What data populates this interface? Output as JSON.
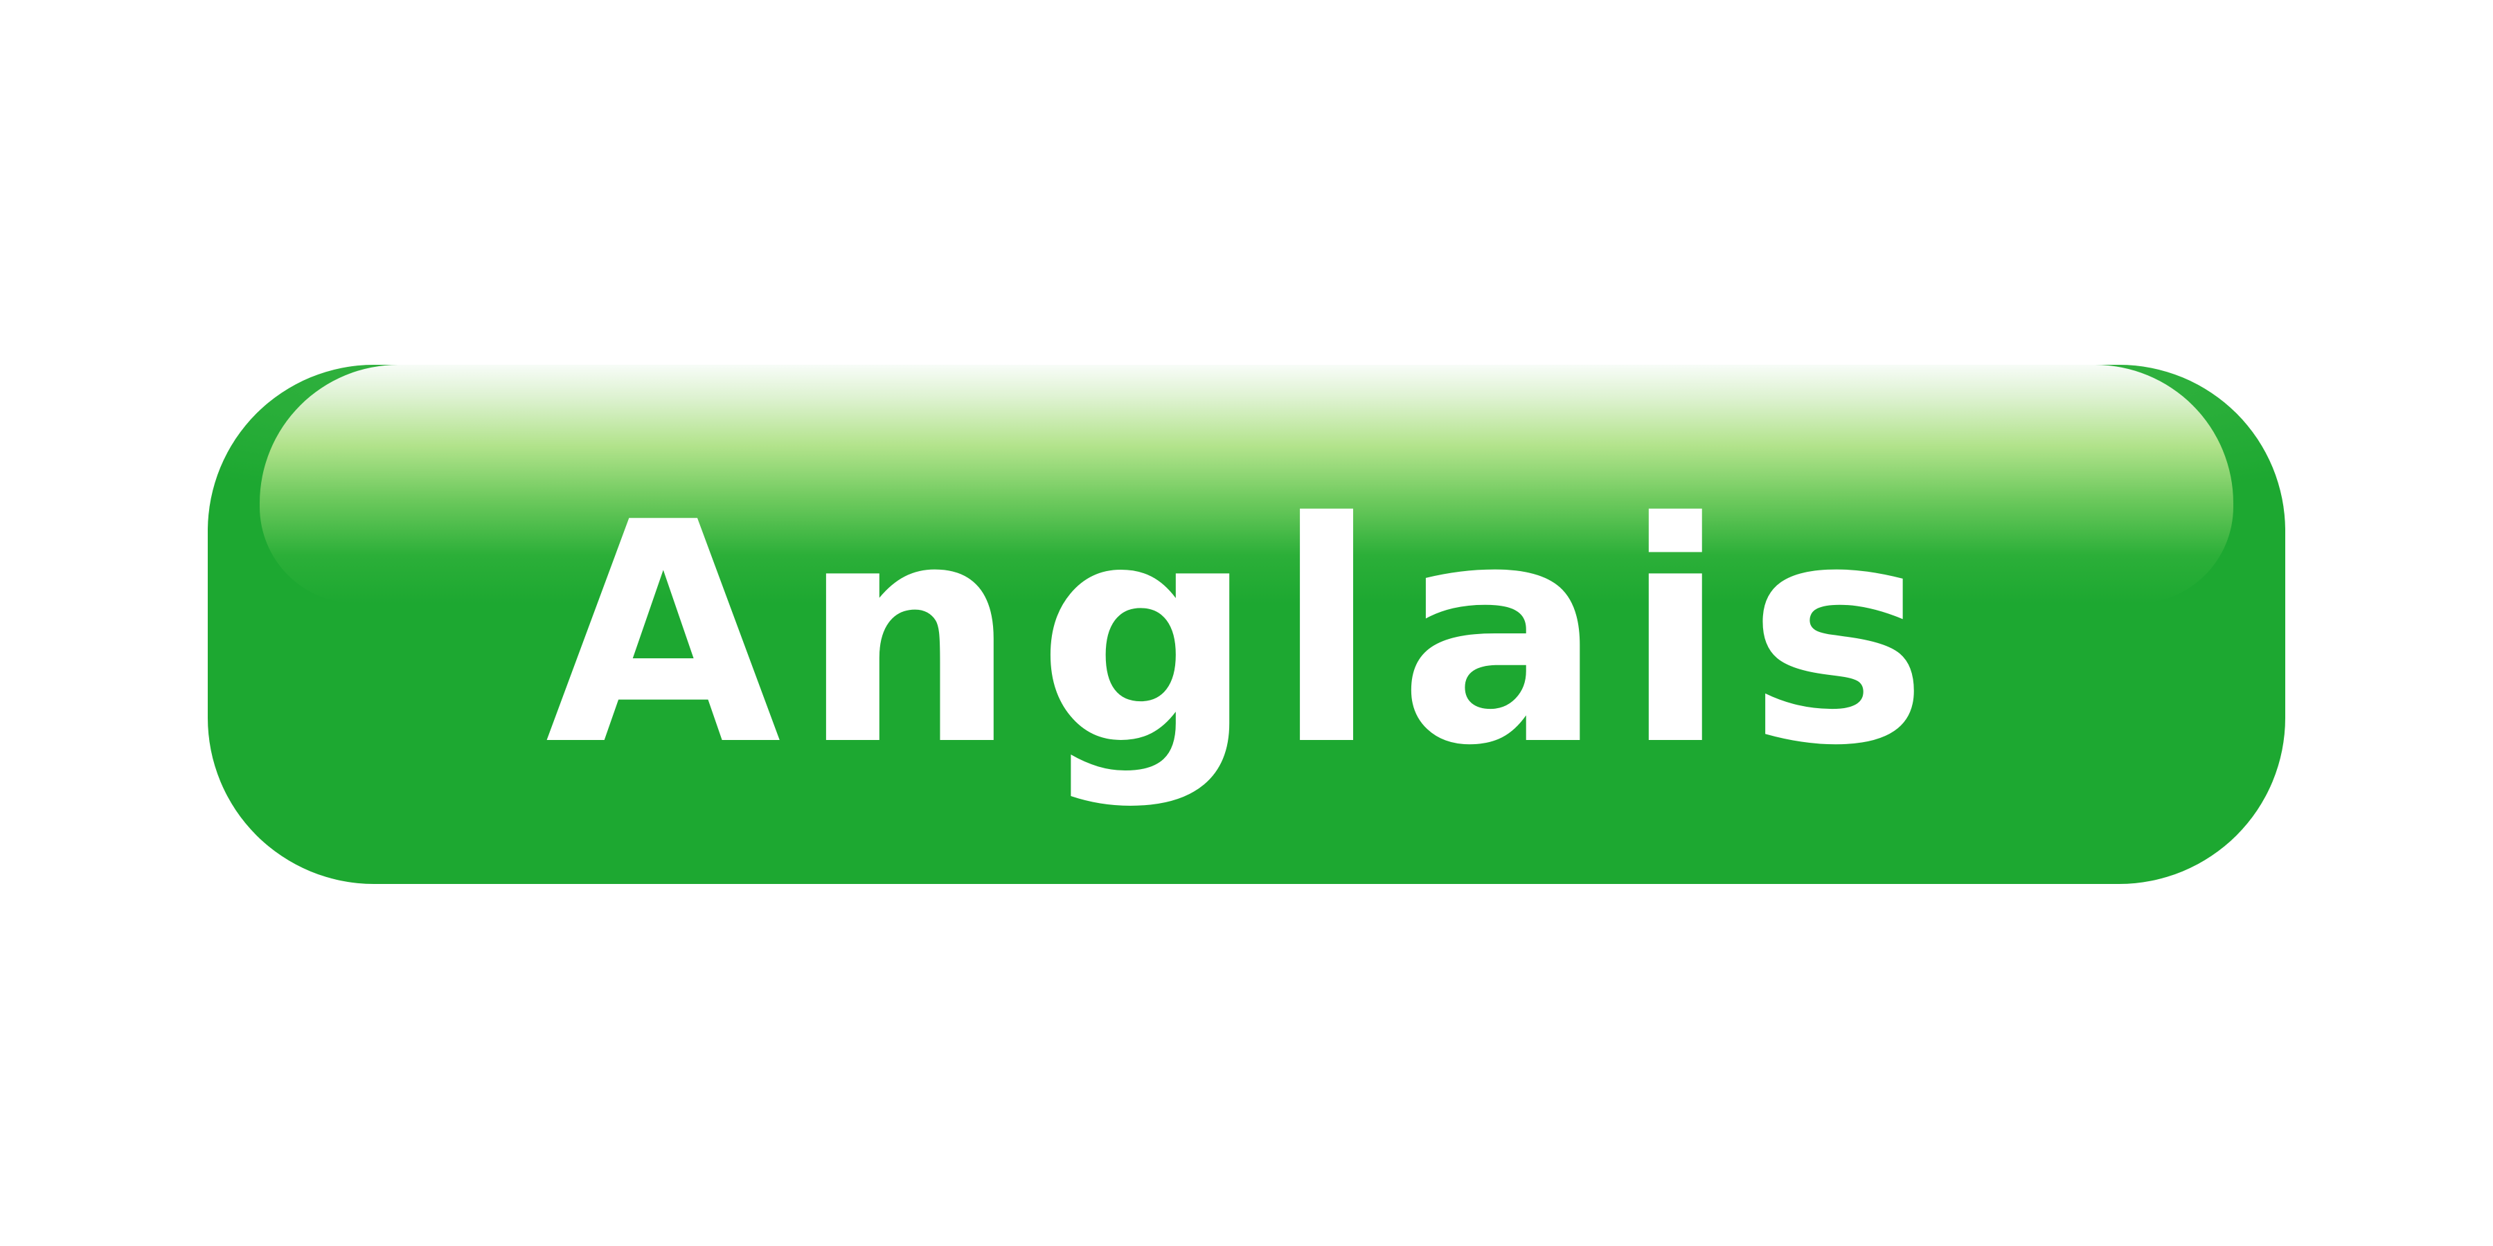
{
  "button": {
    "label": "Anglais",
    "background_color": "#1da831",
    "text_color": "#ffffff",
    "gloss_color": "#c4ea96"
  }
}
